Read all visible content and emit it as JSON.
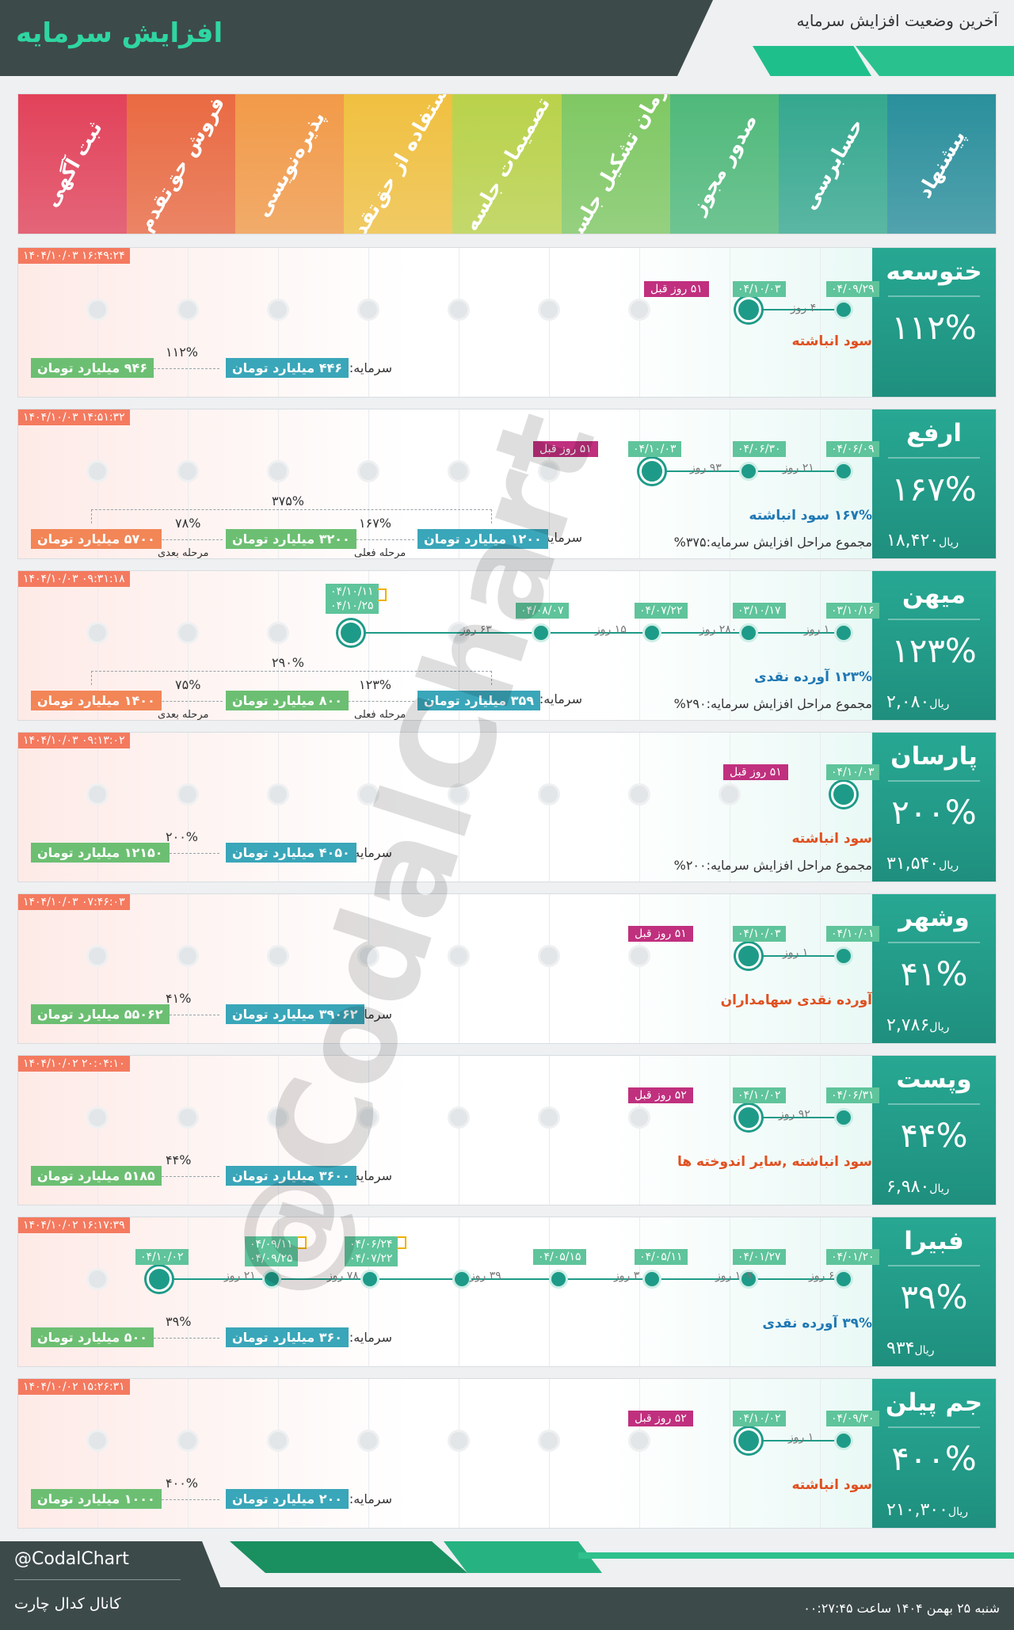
{
  "header": {
    "title": "افزایش سرمایه",
    "subtitle": "آخرین وضعیت افزایش سرمایه"
  },
  "stages": [
    "ثبت آگهی",
    "فروش حق‌تقدم",
    "پذیره‌نویسی",
    "استفاده از حق‌تقدم",
    "تصمیمات جلسه",
    "زمان تشکیل جلسه",
    "صدور مجوز",
    "حسابرسی",
    "پیشنهاد"
  ],
  "stage_colors": [
    "#e2425a",
    "#ea6a42",
    "#f29a48",
    "#f0c040",
    "#b9d24a",
    "#7fc863",
    "#4fb97a",
    "#35a88f",
    "#2a8f9c"
  ],
  "labels": {
    "capital": "سرمایه:",
    "current": "مرحله فعلی",
    "next": "مرحله بعدی",
    "rial": "ریال",
    "sum_prefix": "مجموع مراحل افزایش سرمایه:"
  },
  "companies": [
    {
      "name": "ختوسعه",
      "pct": "۱۱۲%",
      "price": "",
      "timestamp": "۱۴۰۴/۱۰/۰۳ ۱۶:۴۹:۲۴",
      "dates": [
        "۰۴/۰۹/۲۹",
        "۰۴/۱۰/۰۳"
      ],
      "days": [
        "۴ روز"
      ],
      "days_ago": "۵۱ روز قبل",
      "desc": "سود انباشته",
      "sum": "",
      "cap_now": "۴۴۶ میلیارد تومان",
      "cap_next": "",
      "cap_final": "۹۴۶ میلیارد تومان",
      "pct1": "۱۱۲%",
      "pct2": "",
      "pct_total": ""
    },
    {
      "name": "ارفع",
      "pct": "۱۶۷%",
      "price": "۱۸,۴۲۰",
      "timestamp": "۱۴۰۴/۱۰/۰۳ ۱۴:۵۱:۳۲",
      "dates": [
        "۰۴/۰۶/۰۹",
        "۰۴/۰۶/۳۰",
        "۰۴/۱۰/۰۳"
      ],
      "days": [
        "۲۱ روز",
        "۹۳ روز"
      ],
      "days_ago": "۵۱ روز قبل",
      "desc": "۱۶۷% سود انباشته",
      "sum": "مجموع مراحل افزایش سرمایه:۳۷۵%",
      "cap_now": "۱۲۰۰ میلیارد تومان",
      "cap_next": "۳۲۰۰ میلیارد تومان",
      "cap_final": "۵۷۰۰ میلیارد تومان",
      "pct1": "۱۶۷%",
      "pct2": "۷۸%",
      "pct_total": "۳۷۵%"
    },
    {
      "name": "میهن",
      "pct": "۱۲۳%",
      "price": "۲,۰۸۰",
      "timestamp": "۱۴۰۴/۱۰/۰۳ ۰۹:۳۱:۱۸",
      "dates": [
        "۰۳/۱۰/۱۶",
        "۰۳/۱۰/۱۷",
        "۰۴/۰۷/۲۲",
        "۰۴/۰۸/۰۷",
        "۰۴/۱۰/۱۱",
        "۰۴/۱۰/۲۵"
      ],
      "days": [
        "۱ روز",
        "۲۸۰ روز",
        "۱۵ روز",
        "۶۳ روز"
      ],
      "days_ago": "",
      "desc": "۱۲۳% آورده نقدی",
      "sum": "مجموع مراحل افزایش سرمایه:۲۹۰%",
      "cap_now": "۳۵۹ میلیارد تومان",
      "cap_next": "۸۰۰ میلیارد تومان",
      "cap_final": "۱۴۰۰ میلیارد تومان",
      "pct1": "۱۲۳%",
      "pct2": "۷۵%",
      "pct_total": "۲۹۰%"
    },
    {
      "name": "پارسان",
      "pct": "۲۰۰%",
      "price": "۳۱,۵۴۰",
      "timestamp": "۱۴۰۴/۱۰/۰۳ ۰۹:۱۳:۰۲",
      "dates": [
        "۰۴/۱۰/۰۳"
      ],
      "days": [],
      "days_ago": "۵۱ روز قبل",
      "desc": "سود انباشته",
      "sum": "مجموع مراحل افزایش سرمایه:۲۰۰%",
      "cap_now": "۴۰۵۰ میلیارد تومان",
      "cap_next": "",
      "cap_final": "۱۲۱۵۰ میلیارد تومان",
      "pct1": "۲۰۰%",
      "pct2": "",
      "pct_total": ""
    },
    {
      "name": "وشهر",
      "pct": "۴۱%",
      "price": "۲,۷۸۶",
      "timestamp": "۱۴۰۴/۱۰/۰۳ ۰۷:۴۶:۰۳",
      "dates": [
        "۰۴/۱۰/۰۱",
        "۰۴/۱۰/۰۳"
      ],
      "days": [
        "۱ روز"
      ],
      "days_ago": "۵۱ روز قبل",
      "desc": "آورده نقدی سهامداران",
      "sum": "",
      "cap_now": "۳۹۰۶۲ میلیارد تومان",
      "cap_next": "",
      "cap_final": "۵۵۰۶۲ میلیارد تومان",
      "pct1": "۴۱%",
      "pct2": "",
      "pct_total": ""
    },
    {
      "name": "وپست",
      "pct": "۴۴%",
      "price": "۶,۹۸۰",
      "timestamp": "۱۴۰۴/۱۰/۰۲ ۲۰:۰۴:۱۰",
      "dates": [
        "۰۴/۰۶/۳۱",
        "۰۴/۱۰/۰۲"
      ],
      "days": [
        "۹۲ روز"
      ],
      "days_ago": "۵۲ روز قبل",
      "desc": "سود انباشته ,سایر اندوخته ها",
      "sum": "",
      "cap_now": "۳۶۰۰ میلیارد تومان",
      "cap_next": "",
      "cap_final": "۵۱۸۵ میلیارد تومان",
      "pct1": "۴۴%",
      "pct2": "",
      "pct_total": ""
    },
    {
      "name": "فبیرا",
      "pct": "۳۹%",
      "price": "۹۳۴",
      "timestamp": "۱۴۰۴/۱۰/۰۲ ۱۶:۱۷:۳۹",
      "dates": [
        "۰۴/۰۱/۲۰",
        "۰۴/۰۱/۲۷",
        "۰۴/۰۵/۱۱",
        "۰۴/۰۵/۱۵",
        "۰۴/۰۶/۲۴",
        "۰۴/۰۷/۲۲",
        "۰۴/۰۹/۱۱",
        "۰۴/۰۹/۲۵",
        "۰۴/۱۰/۰۲"
      ],
      "days": [
        "۶ روز",
        "۱۰۷ روز",
        "۳ روز",
        "۳۹ روز",
        "۷۸ روز",
        "۲۱ روز"
      ],
      "days_ago": "",
      "desc": "۳۹% آورده نقدی",
      "sum": "",
      "cap_now": "۳۶۰ میلیارد تومان",
      "cap_next": "",
      "cap_final": "۵۰۰ میلیارد تومان",
      "pct1": "۳۹%",
      "pct2": "",
      "pct_total": ""
    },
    {
      "name": "جم پیلن",
      "pct": "۴۰۰%",
      "price": "۲۱۰,۳۰۰",
      "timestamp": "۱۴۰۴/۱۰/۰۲ ۱۵:۲۶:۳۱",
      "dates": [
        "۰۴/۰۹/۳۰",
        "۰۴/۱۰/۰۲"
      ],
      "days": [
        "۱ روز"
      ],
      "days_ago": "۵۲ روز قبل",
      "desc": "سود انباشته",
      "sum": "",
      "cap_now": "۲۰۰ میلیارد تومان",
      "cap_next": "",
      "cap_final": "۱۰۰۰ میلیارد تومان",
      "pct1": "۴۰۰%",
      "pct2": "",
      "pct_total": ""
    }
  ],
  "watermark": "@CodalChart",
  "footer": {
    "handle": "@CodalChart",
    "channel": "کانال کدال چارت",
    "datetime": "شنبه ۲۵ بهمن ۱۴۰۴ ساعت ۰۰:۲۷:۴۵"
  }
}
